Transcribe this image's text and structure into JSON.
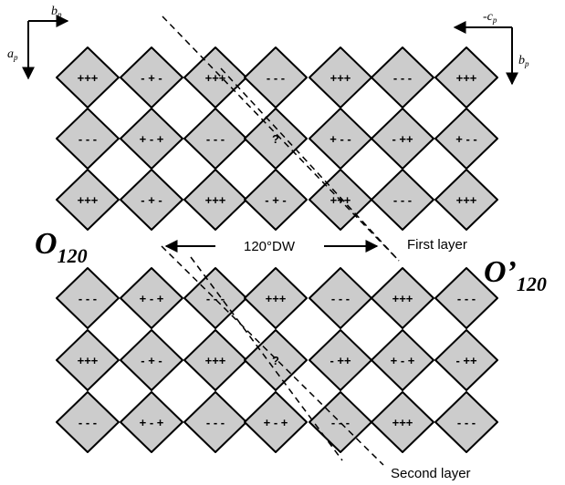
{
  "axes": {
    "top_left": {
      "horizontal": "b",
      "horizontal_sub": "p",
      "vertical": "a",
      "vertical_sub": "p"
    },
    "top_right": {
      "horizontal": "-c",
      "horizontal_sub": "p",
      "vertical": "b",
      "vertical_sub": "p"
    }
  },
  "labels": {
    "domain_left": "O",
    "domain_left_sub": "120",
    "domain_right": "O’",
    "domain_right_sub": "120",
    "domain_wall": "120°DW",
    "first_layer": "First layer",
    "second_layer": "Second layer"
  },
  "first_layer": [
    [
      "+++",
      "- + -",
      "+++",
      "- - -",
      "+++",
      "- - -",
      "+++"
    ],
    [
      "- - -",
      "+ - +",
      "- - -",
      "?",
      "+ - -",
      "- ++",
      "+ - -"
    ],
    [
      "+++",
      "- + -",
      "+++",
      "- + -",
      "+++",
      "- - -",
      "+++"
    ]
  ],
  "second_layer": [
    [
      "- - -",
      "+ - +",
      "- - -",
      "+++",
      "- - -",
      "+++",
      "- - -"
    ],
    [
      "+++",
      "- + -",
      "+++",
      "?",
      "- ++",
      "+ - +",
      "- ++"
    ],
    [
      "- - -",
      "+ - +",
      "- - -",
      "+ - +",
      "- - -",
      "+++",
      "- - -"
    ]
  ],
  "colors": {
    "tile_fill": "#cccccc",
    "stroke": "#000000"
  }
}
